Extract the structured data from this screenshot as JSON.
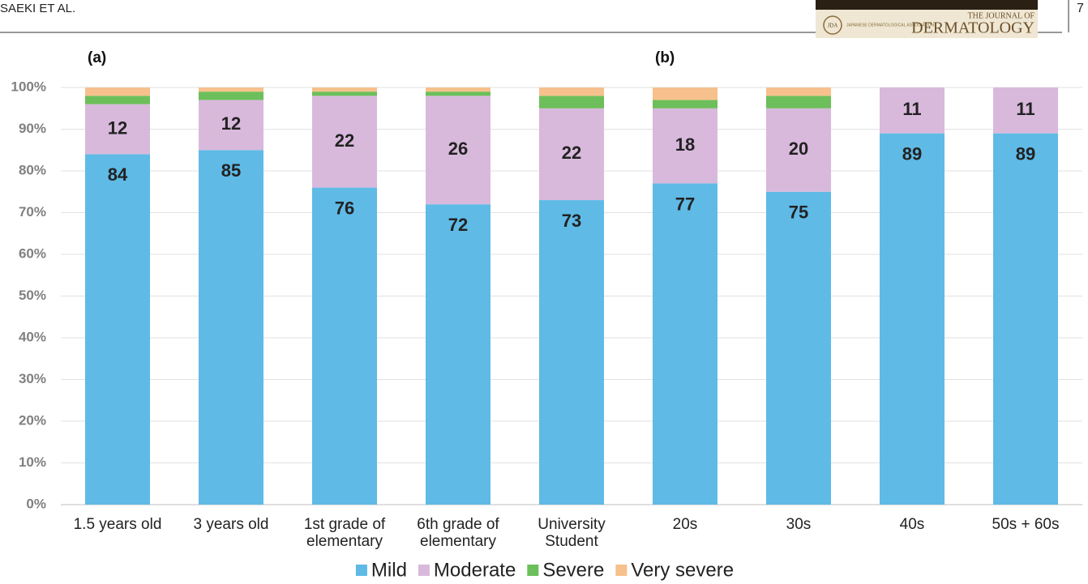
{
  "header": {
    "running_head": "SAEKI ET AL.",
    "page_number": "7",
    "logo": "JDA",
    "society": "JAPANESE DERMATOLOGICAL ASSOCIATION",
    "journal_line1": "THE JOURNAL OF",
    "journal_line2": "DERMATOLOGY"
  },
  "chart_data": {
    "type": "stacked_bar",
    "panel_labels": [
      "(a)",
      "(b)"
    ],
    "categories": [
      "1.5 years old",
      "3 years old",
      "1st grade of\nelementary",
      "6th grade of\nelementary",
      "University\nStudent",
      "20s",
      "30s",
      "40s",
      "50s + 60s"
    ],
    "series": [
      {
        "name": "Mild",
        "color": "#5fbae6",
        "show_labels": true,
        "values": [
          84,
          85,
          76,
          72,
          73,
          77,
          75,
          89,
          89
        ]
      },
      {
        "name": "Moderate",
        "color": "#d8b9dc",
        "show_labels": true,
        "values": [
          12,
          12,
          22,
          26,
          22,
          18,
          20,
          11,
          11
        ]
      },
      {
        "name": "Severe",
        "color": "#6cbf5a",
        "show_labels": false,
        "values": [
          2,
          2,
          1,
          1,
          3,
          2,
          3,
          0,
          0
        ]
      },
      {
        "name": "Very severe",
        "color": "#f6c18c",
        "show_labels": false,
        "values": [
          2,
          1,
          1,
          1,
          2,
          3,
          2,
          0,
          0
        ]
      }
    ],
    "ylim": [
      0,
      100
    ],
    "yticks": [
      {
        "value": 0,
        "label": "0%"
      },
      {
        "value": 10,
        "label": "10%"
      },
      {
        "value": 20,
        "label": "20%"
      },
      {
        "value": 30,
        "label": "30%"
      },
      {
        "value": 40,
        "label": "40%"
      },
      {
        "value": 50,
        "label": "50%"
      },
      {
        "value": 60,
        "label": "60%"
      },
      {
        "value": 70,
        "label": "70%"
      },
      {
        "value": 80,
        "label": "80%"
      },
      {
        "value": 90,
        "label": "90%"
      },
      {
        "value": 100,
        "label": "100%"
      }
    ],
    "grid": true,
    "legend": "bottom"
  }
}
